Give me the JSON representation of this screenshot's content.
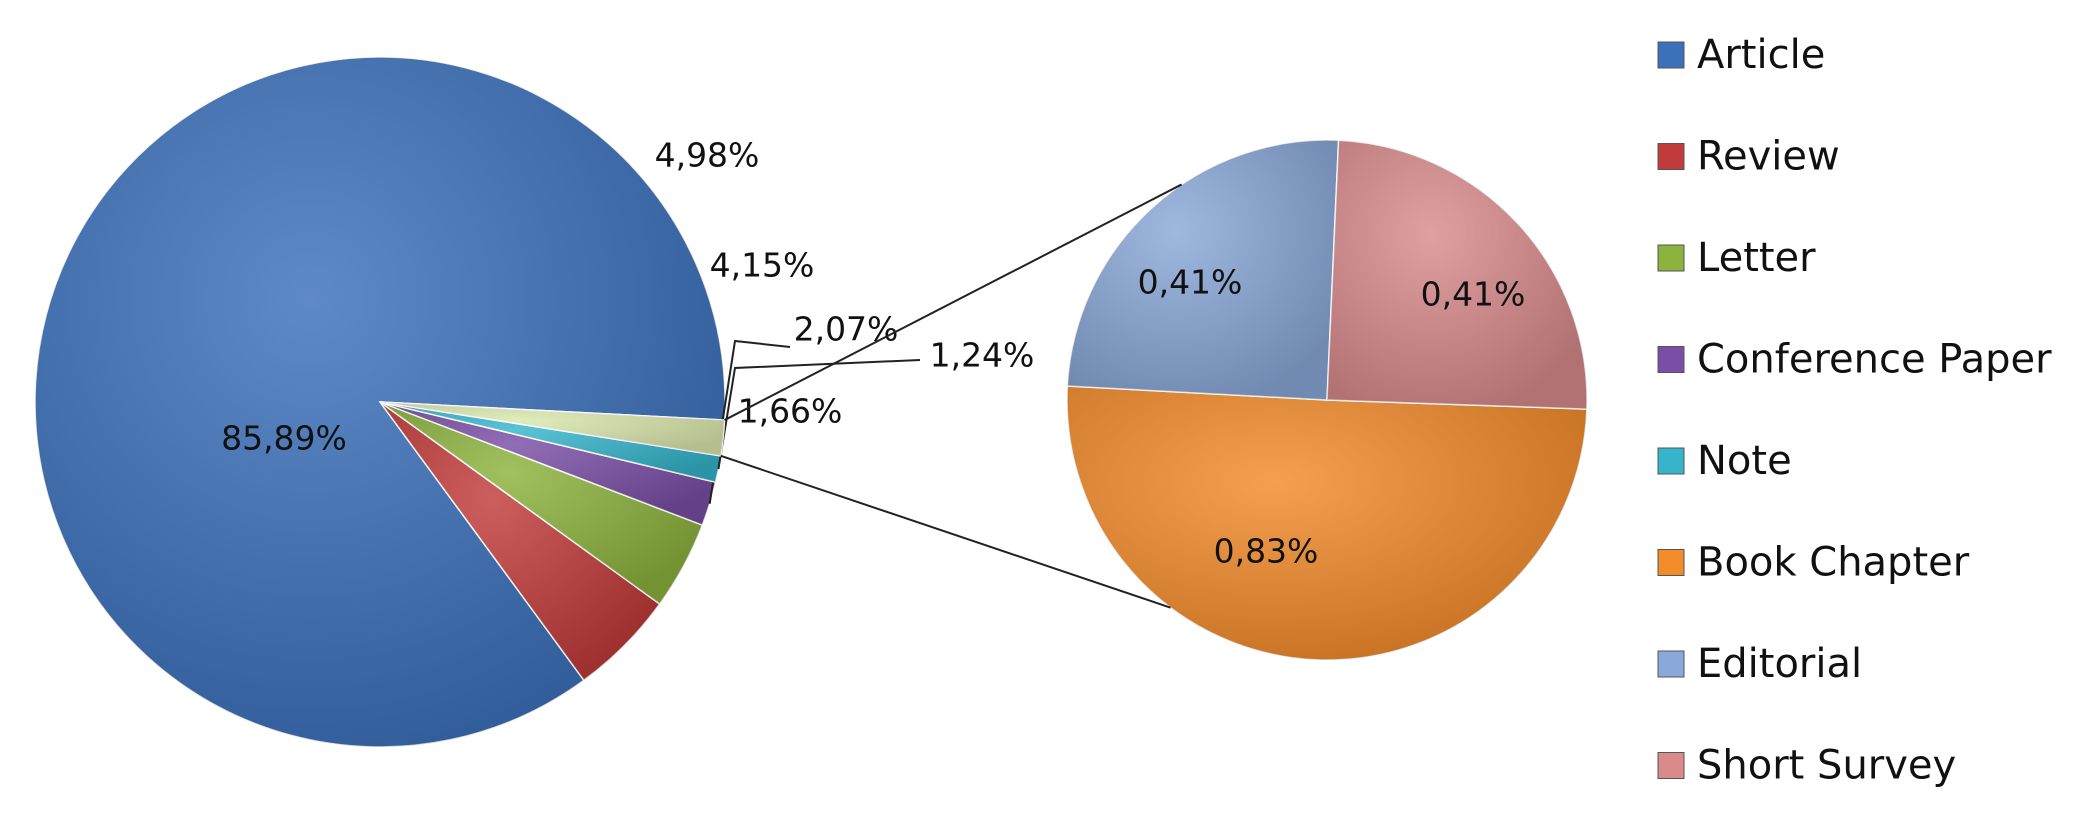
{
  "chart_data": [
    {
      "type": "pie",
      "categories": [
        "Article",
        "Review",
        "Letter",
        "Conference Paper",
        "Note",
        null
      ],
      "values": [
        85.89,
        4.98,
        4.15,
        2.07,
        1.24,
        1.66
      ],
      "value_labels": [
        "85,89%",
        "4,98%",
        "4,15%",
        "2,07%",
        "1,24%",
        "1,66%"
      ],
      "colors": [
        "#3b70bb",
        "#c23b3b",
        "#8cb33e",
        "#7a4ea6",
        "#35b5cc",
        "#dbe8ad"
      ],
      "legend": "right"
    },
    {
      "type": "pie",
      "categories": [
        "Book Chapter",
        "Editorial",
        "Short Survey"
      ],
      "values": [
        0.83,
        0.41,
        0.41
      ],
      "value_labels": [
        "0,83%",
        "0,41%",
        "0,41%"
      ],
      "colors": [
        "#f28b2a",
        "#8aa8d9",
        "#d98b8c"
      ],
      "legend": "right"
    }
  ]
}
